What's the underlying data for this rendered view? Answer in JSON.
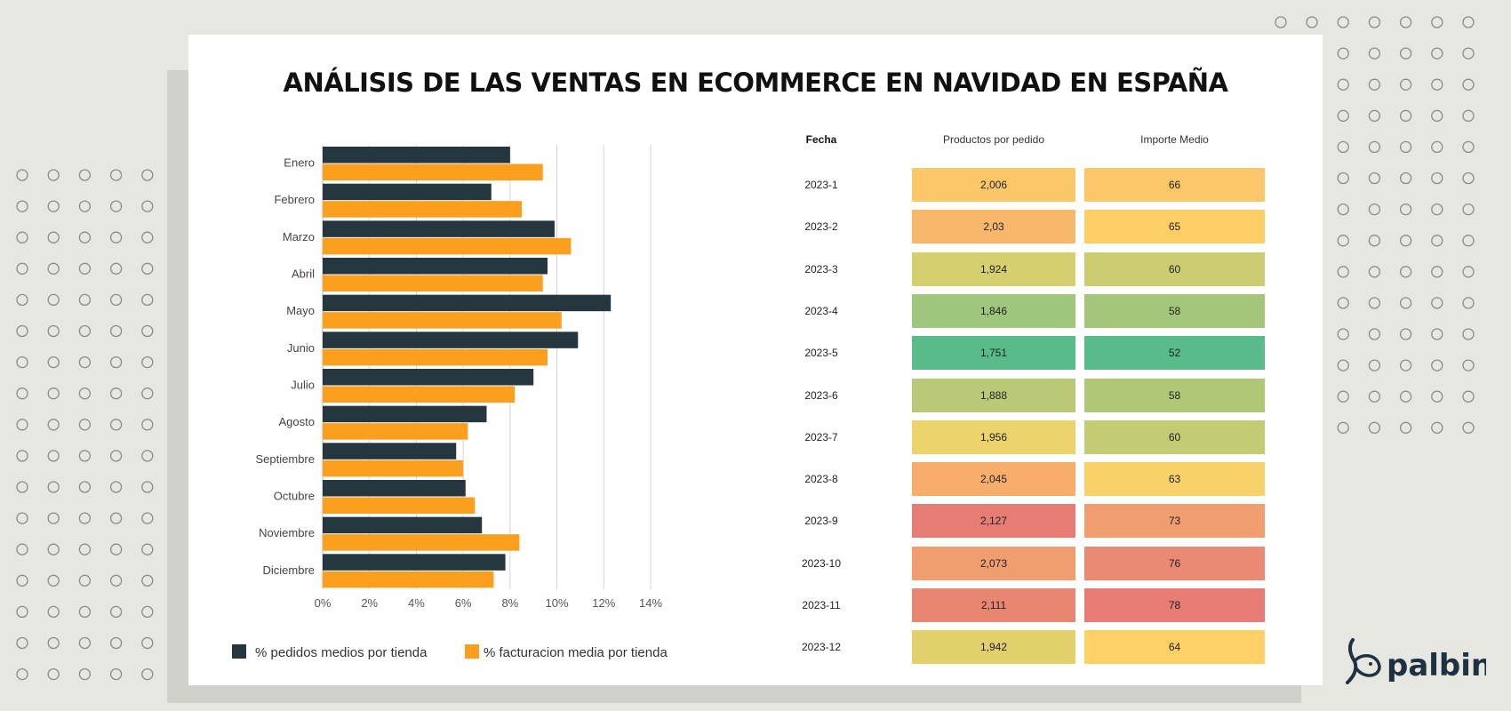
{
  "title": "ANÁLISIS DE LAS VENTAS EN ECOMMERCE EN NAVIDAD EN ESPAÑA",
  "logo_text": "palbin",
  "colors": {
    "series_dark": "#25363e",
    "series_orange": "#fc9f1f",
    "background": "#e6e7e1",
    "logo": "#1d3140"
  },
  "chart_data": {
    "type": "bar",
    "orientation": "horizontal",
    "categories": [
      "Enero",
      "Febrero",
      "Marzo",
      "Abril",
      "Mayo",
      "Junio",
      "Julio",
      "Agosto",
      "Septiembre",
      "Octubre",
      "Noviembre",
      "Diciembre"
    ],
    "series": [
      {
        "name": "% pedidos medios por tienda",
        "color": "#25363e",
        "values": [
          8.0,
          7.2,
          9.9,
          9.6,
          12.3,
          10.9,
          9.0,
          7.0,
          5.7,
          6.1,
          6.8,
          7.8
        ]
      },
      {
        "name": "% facturacion media por tienda",
        "color": "#fc9f1f",
        "values": [
          9.4,
          8.5,
          10.6,
          9.4,
          10.2,
          9.6,
          8.2,
          6.2,
          6.0,
          6.5,
          8.4,
          7.3
        ]
      }
    ],
    "xlim": [
      0,
      14
    ],
    "xticks": [
      "0%",
      "2%",
      "4%",
      "6%",
      "8%",
      "10%",
      "12%",
      "14%"
    ],
    "grid": true,
    "legend_position": "bottom"
  },
  "table": {
    "headers": [
      "Fecha",
      "Productos por pedido",
      "Importe Medio"
    ],
    "rows": [
      {
        "fecha": "2023-1",
        "productos": "2,006",
        "importe": "66",
        "c1": "#fcc768",
        "c2": "#fcc768"
      },
      {
        "fecha": "2023-2",
        "productos": "2,03",
        "importe": "65",
        "c1": "#f7b86b",
        "c2": "#fecf67"
      },
      {
        "fecha": "2023-3",
        "productos": "1,924",
        "importe": "60",
        "c1": "#d5cf70",
        "c2": "#cccd72"
      },
      {
        "fecha": "2023-4",
        "productos": "1,846",
        "importe": "58",
        "c1": "#9ec67c",
        "c2": "#a3c67a"
      },
      {
        "fecha": "2023-5",
        "productos": "1,751",
        "importe": "52",
        "c1": "#57bb8a",
        "c2": "#57bb8a"
      },
      {
        "fecha": "2023-6",
        "productos": "1,888",
        "importe": "58",
        "c1": "#bac977",
        "c2": "#aec878"
      },
      {
        "fecha": "2023-7",
        "productos": "1,956",
        "importe": "60",
        "c1": "#ecd36b",
        "c2": "#c4cb75"
      },
      {
        "fecha": "2023-8",
        "productos": "2,045",
        "importe": "63",
        "c1": "#f6ae6a",
        "c2": "#f7d269"
      },
      {
        "fecha": "2023-9",
        "productos": "2,127",
        "importe": "73",
        "c1": "#e67c73",
        "c2": "#f09e6f"
      },
      {
        "fecha": "2023-10",
        "productos": "2,073",
        "importe": "76",
        "c1": "#f09e6f",
        "c2": "#eb8a72"
      },
      {
        "fecha": "2023-11",
        "productos": "2,111",
        "importe": "78",
        "c1": "#e98671",
        "c2": "#e67c73"
      },
      {
        "fecha": "2023-12",
        "productos": "1,942",
        "importe": "64",
        "c1": "#e2d06c",
        "c2": "#fed066"
      }
    ]
  }
}
